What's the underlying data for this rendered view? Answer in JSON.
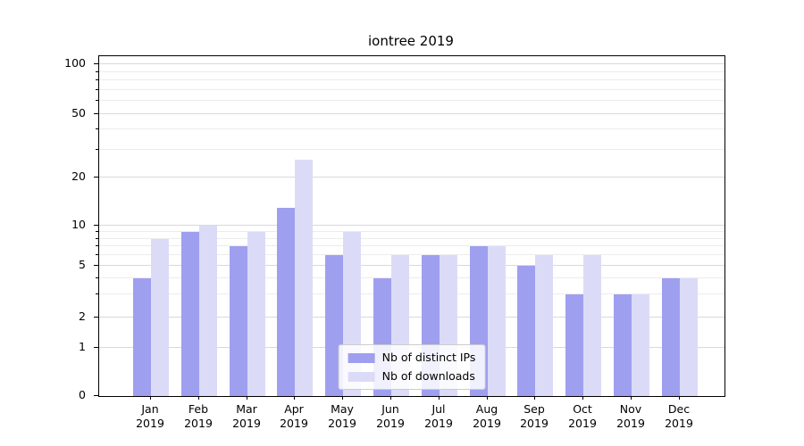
{
  "chart_data": {
    "type": "bar",
    "title": "iontree 2019",
    "categories": [
      "Jan 2019",
      "Feb 2019",
      "Mar 2019",
      "Apr 2019",
      "May 2019",
      "Jun 2019",
      "Jul 2019",
      "Aug 2019",
      "Sep 2019",
      "Oct 2019",
      "Nov 2019",
      "Dec 2019"
    ],
    "series": [
      {
        "name": "Nb of distinct IPs",
        "color": "#9f9ff0",
        "values": [
          4,
          9,
          7,
          13,
          6,
          4,
          6,
          7,
          5,
          3,
          3,
          4
        ]
      },
      {
        "name": "Nb of downloads",
        "color": "#dbdbf8",
        "values": [
          8,
          10,
          9,
          26,
          9,
          6,
          6,
          7,
          6,
          6,
          3,
          4
        ]
      }
    ],
    "xlabel": "",
    "ylabel": "",
    "y_scale": "symlog",
    "y_ticks": [
      0,
      1,
      2,
      5,
      10,
      20,
      50,
      100
    ],
    "y_minor_gridlines": [
      3,
      4,
      6,
      7,
      8,
      9,
      30,
      40,
      60,
      70,
      80,
      90
    ],
    "ylim": [
      0,
      100
    ],
    "grid": true,
    "legend_position": "lower center",
    "grid_color": "#d9d9d9",
    "axis_color": "#000000",
    "background_color": "#ffffff"
  }
}
